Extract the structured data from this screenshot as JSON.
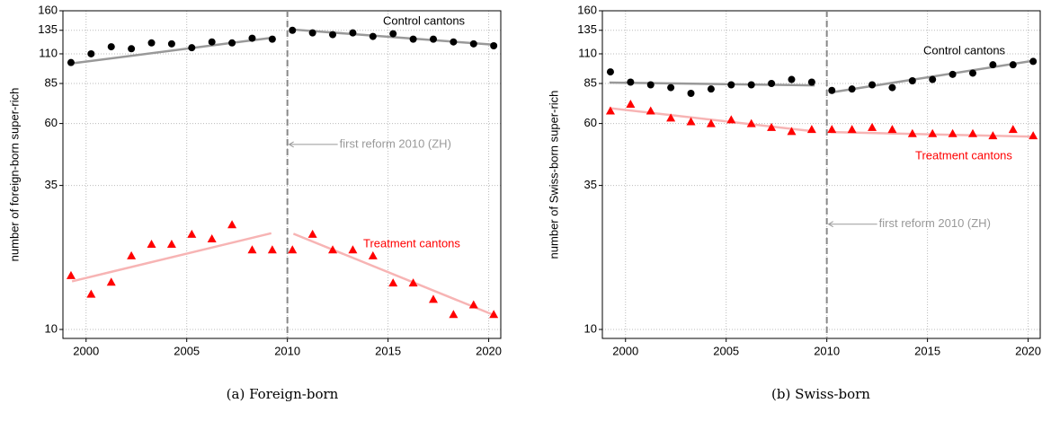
{
  "chart_data": [
    {
      "type": "scatter",
      "y_label": "number of foreign-born super-rich",
      "caption": "(a) Foreign-born",
      "log_y": true,
      "grid": true,
      "xlim": [
        1998.85,
        2020.6
      ],
      "ylim": [
        9.25,
        160
      ],
      "xticks": [
        2000,
        2005,
        2010,
        2015,
        2020
      ],
      "yticks": [
        10,
        35,
        60,
        85,
        110,
        135,
        160
      ],
      "x": [
        1999.25,
        2000.25,
        2001.25,
        2002.25,
        2003.25,
        2004.25,
        2005.25,
        2006.25,
        2007.25,
        2008.25,
        2009.25,
        2010.25,
        2011.25,
        2012.25,
        2013.25,
        2014.25,
        2015.25,
        2016.25,
        2017.25,
        2018.25,
        2019.25,
        2020.25
      ],
      "series": [
        {
          "name": "Control cantons",
          "marker": "circle",
          "color": "#000000",
          "values": [
            102,
            110,
            117,
            115,
            121,
            120,
            116,
            122,
            121,
            126,
            125,
            135,
            132,
            130,
            132,
            128,
            131,
            125,
            125,
            122,
            120,
            118
          ]
        },
        {
          "name": "Treatment cantons",
          "marker": "triangle",
          "color": "#ff0000",
          "values": [
            16,
            13.6,
            15.1,
            19,
            21,
            21,
            22.9,
            22,
            24.9,
            20,
            20,
            20,
            22.9,
            20,
            20,
            19,
            15,
            15,
            13,
            11.4,
            12.4,
            11.4
          ]
        }
      ],
      "fit_lines": [
        {
          "color": "#999999",
          "x": [
            1999.2,
            2009.4
          ],
          "y": [
            101,
            127
          ]
        },
        {
          "color": "#999999",
          "x": [
            2010.2,
            2020.3
          ],
          "y": [
            136,
            119
          ]
        },
        {
          "color": "#f7b4b4",
          "x": [
            1999.3,
            2009.2
          ],
          "y": [
            15.2,
            23.1
          ]
        },
        {
          "color": "#f7b4b4",
          "x": [
            2010.3,
            2020.3
          ],
          "y": [
            23,
            11.3
          ]
        }
      ],
      "vline": 2010,
      "annotation": {
        "text": "first reform 2010 (ZH)",
        "y": 50
      }
    },
    {
      "type": "scatter",
      "y_label": "number of Swiss-born super-rich",
      "caption": "(b) Swiss-born",
      "log_y": true,
      "grid": true,
      "xlim": [
        1998.85,
        2020.6
      ],
      "ylim": [
        9.25,
        160
      ],
      "xticks": [
        2000,
        2005,
        2010,
        2015,
        2020
      ],
      "yticks": [
        10,
        35,
        60,
        85,
        110,
        135,
        160
      ],
      "x": [
        1999.25,
        2000.25,
        2001.25,
        2002.25,
        2003.25,
        2004.25,
        2005.25,
        2006.25,
        2007.25,
        2008.25,
        2009.25,
        2010.25,
        2011.25,
        2012.25,
        2013.25,
        2014.25,
        2015.25,
        2016.25,
        2017.25,
        2018.25,
        2019.25,
        2020.25
      ],
      "series": [
        {
          "name": "Control cantons",
          "marker": "circle",
          "color": "#000000",
          "values": [
            94,
            86,
            84,
            82,
            78,
            81,
            84,
            84,
            85,
            88,
            86,
            80,
            81,
            84,
            82,
            87,
            88,
            92,
            93,
            100,
            100,
            103
          ]
        },
        {
          "name": "Treatment cantons",
          "marker": "triangle",
          "color": "#ff0000",
          "values": [
            67,
            71,
            67,
            63,
            61,
            60,
            62,
            60,
            58,
            56,
            57,
            57,
            57,
            58,
            57,
            55,
            55,
            55,
            55,
            54,
            57,
            54
          ]
        }
      ],
      "fit_lines": [
        {
          "color": "#999999",
          "x": [
            1999.2,
            2009.4
          ],
          "y": [
            85.7,
            83.6
          ]
        },
        {
          "color": "#999999",
          "x": [
            2010.2,
            2020.4
          ],
          "y": [
            78.6,
            104
          ]
        },
        {
          "color": "#f7b4b4",
          "x": [
            1999.2,
            2009.4
          ],
          "y": [
            68.6,
            56
          ]
        },
        {
          "color": "#f7b4b4",
          "x": [
            2010.2,
            2020.4
          ],
          "y": [
            55.7,
            53.5
          ]
        }
      ],
      "vline": 2010,
      "annotation": {
        "text": "first reform 2010 (ZH)",
        "y": 25
      }
    }
  ]
}
